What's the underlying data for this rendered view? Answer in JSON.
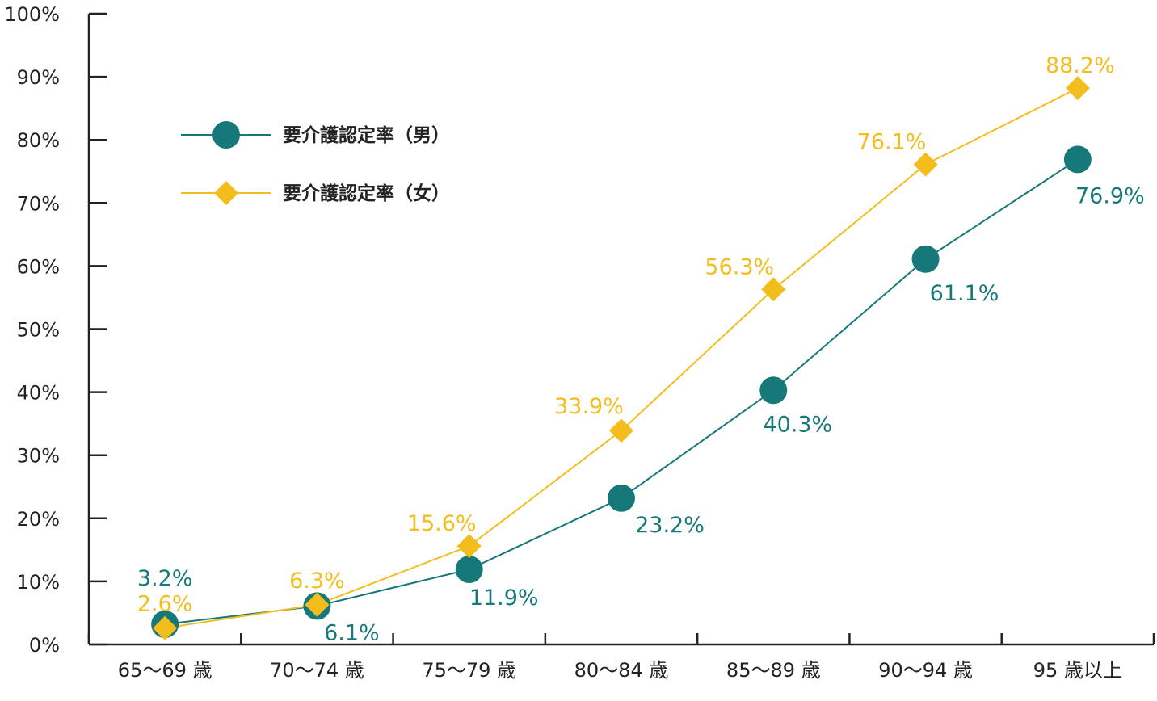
{
  "chart_data": {
    "type": "line",
    "categories": [
      "65〜69 歳",
      "70〜74 歳",
      "75〜79 歳",
      "80〜84 歳",
      "85〜89 歳",
      "90〜94 歳",
      "95 歳以上"
    ],
    "series": [
      {
        "name": "要介護認定率（男）",
        "marker": "circle",
        "color": "#17787a",
        "values": [
          3.2,
          6.1,
          11.9,
          23.2,
          40.3,
          61.1,
          76.9
        ],
        "labels": [
          "3.2%",
          "6.1%",
          "11.9%",
          "23.2%",
          "40.3%",
          "61.1%",
          "76.9%"
        ]
      },
      {
        "name": "要介護認定率（女）",
        "marker": "diamond",
        "color": "#f2bd1d",
        "values": [
          2.6,
          6.3,
          15.6,
          33.9,
          56.3,
          76.1,
          88.2
        ],
        "labels": [
          "2.6%",
          "6.3%",
          "15.6%",
          "33.9%",
          "56.3%",
          "76.1%",
          "88.2%"
        ]
      }
    ],
    "y_ticks": [
      "0%",
      "10%",
      "20%",
      "30%",
      "40%",
      "50%",
      "60%",
      "70%",
      "80%",
      "90%",
      "100%"
    ],
    "ylim": [
      0,
      100
    ],
    "grid": false,
    "legend_position": "top-left"
  }
}
